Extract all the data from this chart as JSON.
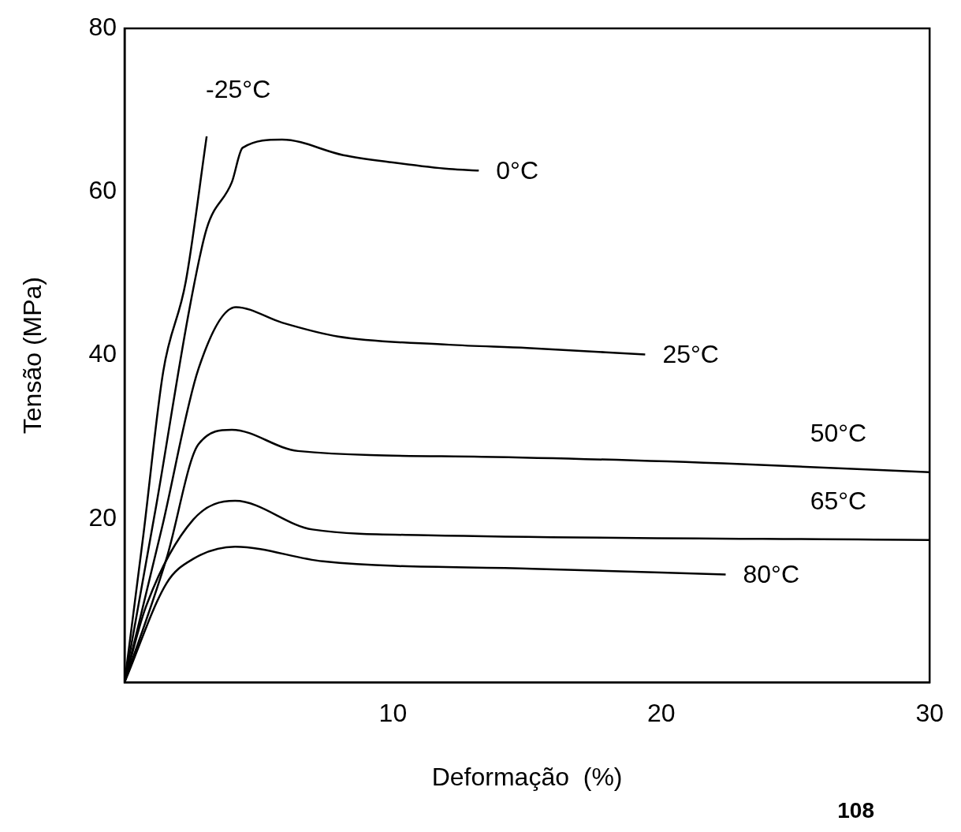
{
  "chart_data": {
    "type": "line",
    "xlabel": "Deformação  (%)",
    "ylabel": "Tensão (MPa)",
    "xlim": [
      0,
      30
    ],
    "ylim": [
      0,
      80
    ],
    "xticks": [
      10,
      20,
      30
    ],
    "yticks": [
      20,
      40,
      60,
      80
    ],
    "grid": false,
    "legend": false,
    "marker": "none",
    "line_style": "solid",
    "annotations": [
      "108"
    ],
    "series": [
      {
        "name": "-25°C",
        "color": "#000000",
        "x": [
          0,
          0.7,
          1.44,
          2.28,
          3.06
        ],
        "values": [
          0,
          18,
          38,
          49,
          66.8
        ]
      },
      {
        "name": "0°C",
        "color": "#000000",
        "x": [
          0,
          1.2,
          2.43,
          3.06,
          4.0,
          4.4,
          5.87,
          8.15,
          10.0,
          12.1,
          13.2
        ],
        "values": [
          0,
          22,
          45.9,
          55.5,
          61.2,
          65.4,
          66.4,
          64.5,
          63.6,
          62.8,
          62.6
        ]
      },
      {
        "name": "25°C",
        "color": "#000000",
        "x": [
          0,
          1.4,
          2.75,
          4.15,
          5.87,
          7.96,
          12.1,
          15,
          19.4
        ],
        "values": [
          0,
          19,
          38.3,
          45.9,
          44.0,
          42.3,
          41.3,
          40.9,
          40.1
        ]
      },
      {
        "name": "50°C",
        "color": "#000000",
        "x": [
          0,
          1.56,
          2.75,
          4.0,
          6.46,
          13.3,
          23.0,
          30
        ],
        "values": [
          0,
          15.1,
          29.1,
          30.9,
          28.3,
          27.6,
          26.7,
          25.7
        ]
      },
      {
        "name": "65°C",
        "color": "#000000",
        "x": [
          0,
          0.78,
          2.56,
          4.12,
          7.0,
          11.3,
          30
        ],
        "values": [
          0,
          9.1,
          19.9,
          22.2,
          18.7,
          18.0,
          17.4
        ]
      },
      {
        "name": "80°C",
        "color": "#000000",
        "x": [
          0,
          1.56,
          2.56,
          4.12,
          7.4,
          15.2,
          22.4
        ],
        "values": [
          0,
          12.1,
          15.1,
          16.6,
          14.8,
          13.9,
          13.2
        ]
      }
    ]
  }
}
